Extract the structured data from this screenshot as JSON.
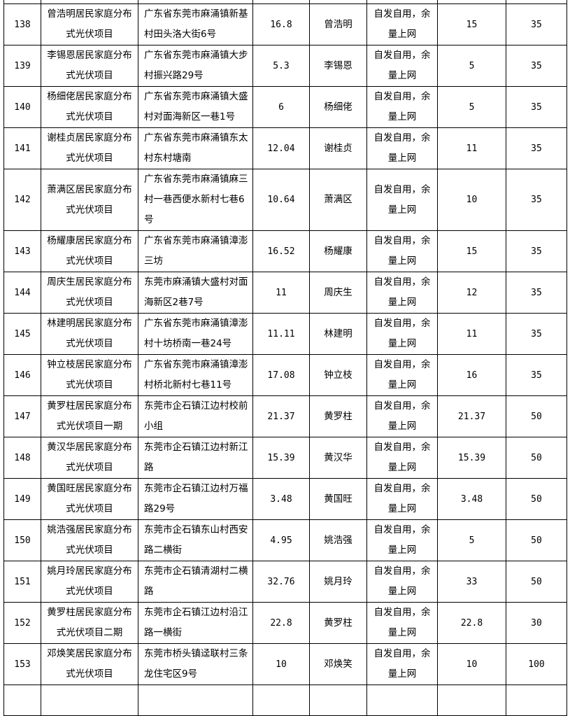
{
  "table": {
    "rows": [
      {
        "no": "138",
        "project": "曾浩明居民家庭分布式光伏项目",
        "address": "广东省东莞市麻涌镇新基村田头洛大街6号",
        "capacity": "16.8",
        "owner": "曾浩明",
        "mode": "自发自用，余量上网",
        "c7": "15",
        "c8": "35"
      },
      {
        "no": "139",
        "project": "李锡恩居民家庭分布式光伏项目",
        "address": "广东省东莞市麻涌镇大步村振兴路29号",
        "capacity": "5.3",
        "owner": "李锡恩",
        "mode": "自发自用，余量上网",
        "c7": "5",
        "c8": "35"
      },
      {
        "no": "140",
        "project": "杨细佬居民家庭分布式光伏项目",
        "address": "广东省东莞市麻涌镇大盛村对面海新区一巷1号",
        "capacity": "6",
        "owner": "杨细佬",
        "mode": "自发自用，余量上网",
        "c7": "5",
        "c8": "35"
      },
      {
        "no": "141",
        "project": "谢桂贞居民家庭分布式光伏项目",
        "address": "广东省东莞市麻涌镇东太村东村塘南",
        "capacity": "12.04",
        "owner": "谢桂贞",
        "mode": "自发自用，余量上网",
        "c7": "11",
        "c8": "35"
      },
      {
        "no": "142",
        "project": "萧满区居民家庭分布式光伏项目",
        "address": "广东省东莞市麻涌镇麻三村一巷西便水新村七巷6号",
        "capacity": "10.64",
        "owner": "萧满区",
        "mode": "自发自用，余量上网",
        "c7": "10",
        "c8": "35"
      },
      {
        "no": "143",
        "project": "杨耀康居民家庭分布式光伏项目",
        "address": "广东省东莞市麻涌镇漳澎三坊",
        "capacity": "16.52",
        "owner": "杨耀康",
        "mode": "自发自用，余量上网",
        "c7": "15",
        "c8": "35"
      },
      {
        "no": "144",
        "project": "周庆生居民家庭分布式光伏项目",
        "address": "东莞市麻涌镇大盛村对面海新区2巷7号",
        "capacity": "11",
        "owner": "周庆生",
        "mode": "自发自用，余量上网",
        "c7": "12",
        "c8": "35"
      },
      {
        "no": "145",
        "project": "林建明居民家庭分布式光伏项目",
        "address": "广东省东莞市麻涌镇漳澎村十坊桥南一巷24号",
        "capacity": "11.11",
        "owner": "林建明",
        "mode": "自发自用，余量上网",
        "c7": "11",
        "c8": "35"
      },
      {
        "no": "146",
        "project": "钟立枝居民家庭分布式光伏项目",
        "address": "广东省东莞市麻涌镇漳澎村桥北新村七巷11号",
        "capacity": "17.08",
        "owner": "钟立枝",
        "mode": "自发自用，余量上网",
        "c7": "16",
        "c8": "35"
      },
      {
        "no": "147",
        "project": "黄罗柱居民家庭分布式光伏项目一期",
        "address": "东莞市企石镇江边村校前小组",
        "capacity": "21.37",
        "owner": "黄罗柱",
        "mode": "自发自用，余量上网",
        "c7": "21.37",
        "c8": "50"
      },
      {
        "no": "148",
        "project": "黄汉华居民家庭分布式光伏项目",
        "address": "东莞市企石镇江边村新江路",
        "capacity": "15.39",
        "owner": "黄汉华",
        "mode": "自发自用，余量上网",
        "c7": "15.39",
        "c8": "50"
      },
      {
        "no": "149",
        "project": "黄国旺居民家庭分布式光伏项目",
        "address": "东莞市企石镇江边村万福路29号",
        "capacity": "3.48",
        "owner": "黄国旺",
        "mode": "自发自用，余量上网",
        "c7": "3.48",
        "c8": "50"
      },
      {
        "no": "150",
        "project": "姚浩强居民家庭分布式光伏项目",
        "address": "东莞市企石镇东山村西安路二横街",
        "capacity": "4.95",
        "owner": "姚浩强",
        "mode": "自发自用，余量上网",
        "c7": "5",
        "c8": "50"
      },
      {
        "no": "151",
        "project": "姚月玲居民家庭分布式光伏项目",
        "address": "东莞市企石镇清湖村二横路",
        "capacity": "32.76",
        "owner": "姚月玲",
        "mode": "自发自用，余量上网",
        "c7": "33",
        "c8": "50"
      },
      {
        "no": "152",
        "project": "黄罗柱居民家庭分布式光伏项目二期",
        "address": "东莞市企石镇江边村沿江路一横街",
        "capacity": "22.8",
        "owner": "黄罗柱",
        "mode": "自发自用，余量上网",
        "c7": "22.8",
        "c8": "30"
      },
      {
        "no": "153",
        "project": "邓焕笑居民家庭分布式光伏项目",
        "address": "东莞市桥头镇迳联村三条龙住宅区9号",
        "capacity": "10",
        "owner": "邓焕笑",
        "mode": "自发自用，余量上网",
        "c7": "10",
        "c8": "100"
      }
    ]
  }
}
